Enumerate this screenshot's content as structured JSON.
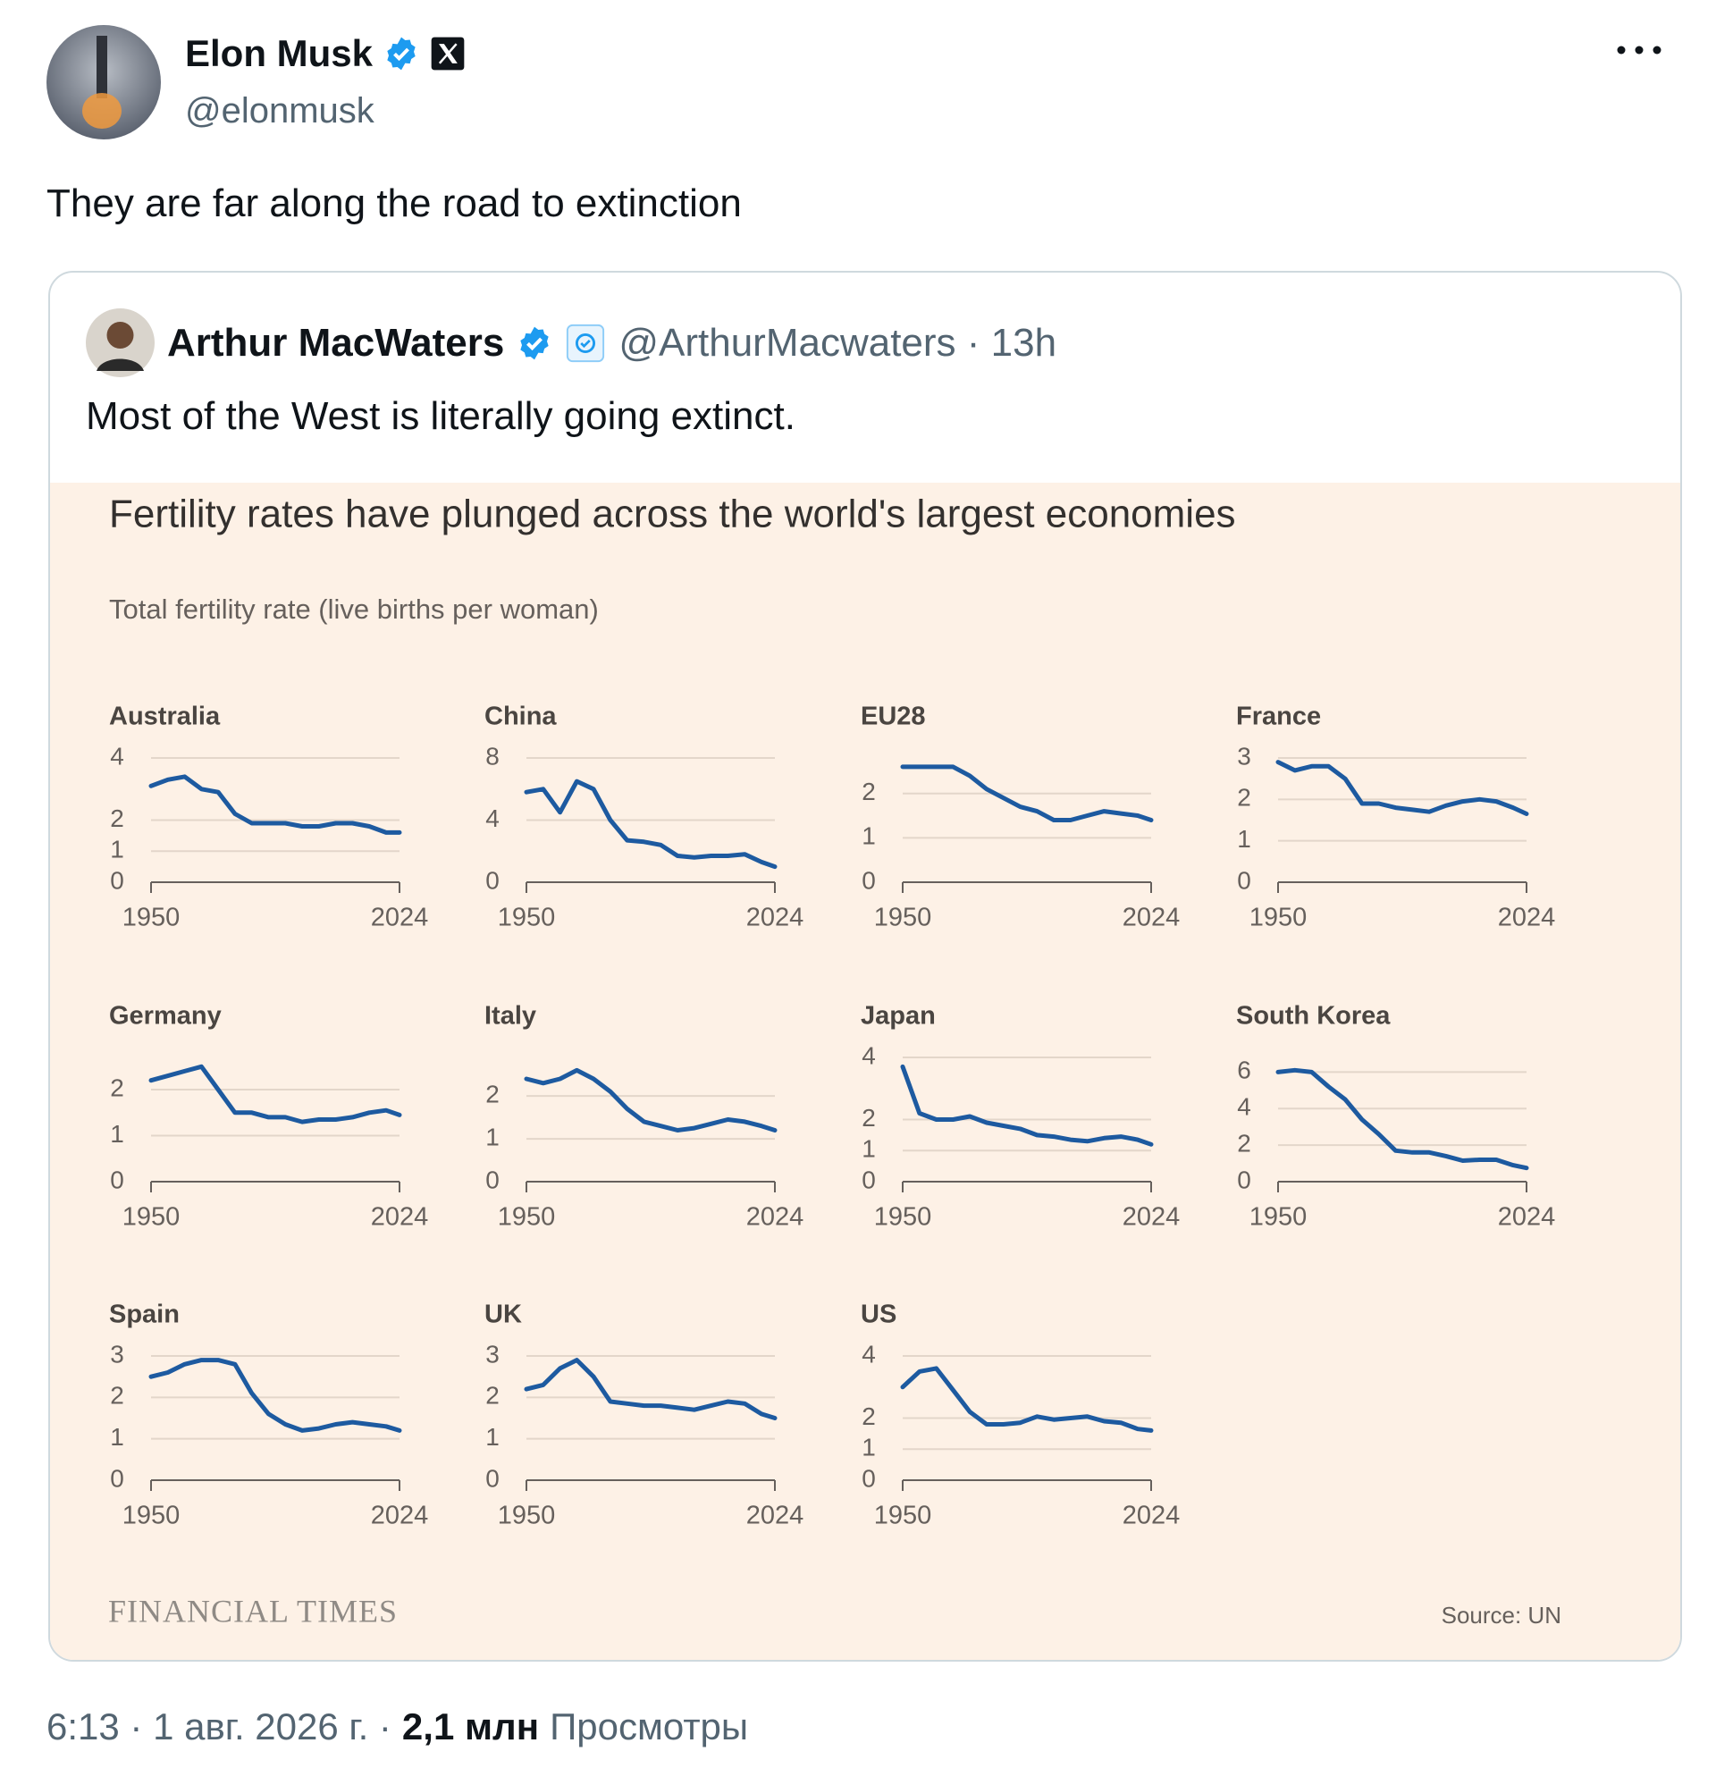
{
  "author": {
    "name": "Elon Musk",
    "handle": "@elonmusk"
  },
  "text": "They are far along the road to extinction",
  "quote": {
    "name": "Arthur MacWaters",
    "meta": "@ArthurMacwaters · 13h",
    "text": "Most of the West is literally going extinct."
  },
  "figure": {
    "title": "Fertility rates have plunged across the world's largest economies",
    "subtitle": "Total fertility rate (live births per woman)",
    "brand": "FINANCIAL TIMES",
    "source": "Source: UN"
  },
  "footer": {
    "timestamp": "6:13 · 1 авг. 2026 г. ·",
    "views": "2,1 млн",
    "views_label": "Просмотры"
  },
  "chart_data": [
    {
      "type": "line",
      "title": "Australia",
      "color": "#1d5aa0",
      "x": [
        1950,
        1955,
        1960,
        1965,
        1970,
        1975,
        1980,
        1985,
        1990,
        1995,
        2000,
        2005,
        2010,
        2015,
        2020,
        2024
      ],
      "values": [
        3.1,
        3.3,
        3.4,
        3.0,
        2.9,
        2.2,
        1.9,
        1.9,
        1.9,
        1.8,
        1.8,
        1.9,
        1.9,
        1.8,
        1.6,
        1.6
      ],
      "xlim": [
        1950,
        2024
      ],
      "xticks": [
        1950,
        2024
      ],
      "ylim": [
        0,
        4
      ],
      "yticks": [
        0,
        1,
        2,
        4
      ]
    },
    {
      "type": "line",
      "title": "China",
      "color": "#1d5aa0",
      "x": [
        1950,
        1955,
        1960,
        1965,
        1970,
        1975,
        1980,
        1985,
        1990,
        1995,
        2000,
        2005,
        2010,
        2015,
        2020,
        2024
      ],
      "values": [
        5.8,
        6.0,
        4.5,
        6.5,
        6.0,
        4.0,
        2.7,
        2.6,
        2.4,
        1.7,
        1.6,
        1.7,
        1.7,
        1.8,
        1.3,
        1.0
      ],
      "xlim": [
        1950,
        2024
      ],
      "xticks": [
        1950,
        2024
      ],
      "ylim": [
        0,
        8
      ],
      "yticks": [
        0,
        4,
        8
      ]
    },
    {
      "type": "line",
      "title": "EU28",
      "color": "#1d5aa0",
      "x": [
        1950,
        1955,
        1960,
        1965,
        1970,
        1975,
        1980,
        1985,
        1990,
        1995,
        2000,
        2005,
        2010,
        2015,
        2020,
        2024
      ],
      "values": [
        2.6,
        2.6,
        2.6,
        2.6,
        2.4,
        2.1,
        1.9,
        1.7,
        1.6,
        1.4,
        1.4,
        1.5,
        1.6,
        1.55,
        1.5,
        1.4
      ],
      "xlim": [
        1950,
        2024
      ],
      "xticks": [
        1950,
        2024
      ],
      "ylim": [
        0,
        2.8
      ],
      "yticks": [
        0,
        1,
        2
      ]
    },
    {
      "type": "line",
      "title": "France",
      "color": "#1d5aa0",
      "x": [
        1950,
        1955,
        1960,
        1965,
        1970,
        1975,
        1980,
        1985,
        1990,
        1995,
        2000,
        2005,
        2010,
        2015,
        2020,
        2024
      ],
      "values": [
        2.9,
        2.7,
        2.8,
        2.8,
        2.5,
        1.9,
        1.9,
        1.8,
        1.75,
        1.7,
        1.85,
        1.95,
        2.0,
        1.95,
        1.8,
        1.65
      ],
      "xlim": [
        1950,
        2024
      ],
      "xticks": [
        1950,
        2024
      ],
      "ylim": [
        0,
        3
      ],
      "yticks": [
        0,
        1,
        2,
        3
      ]
    },
    {
      "type": "line",
      "title": "Germany",
      "color": "#1d5aa0",
      "x": [
        1950,
        1955,
        1960,
        1965,
        1970,
        1975,
        1980,
        1985,
        1990,
        1995,
        2000,
        2005,
        2010,
        2015,
        2020,
        2024
      ],
      "values": [
        2.2,
        2.3,
        2.4,
        2.5,
        2.0,
        1.5,
        1.5,
        1.4,
        1.4,
        1.3,
        1.35,
        1.35,
        1.4,
        1.5,
        1.55,
        1.45
      ],
      "xlim": [
        1950,
        2024
      ],
      "xticks": [
        1950,
        2024
      ],
      "ylim": [
        0,
        2.7
      ],
      "yticks": [
        0,
        1,
        2
      ]
    },
    {
      "type": "line",
      "title": "Italy",
      "color": "#1d5aa0",
      "x": [
        1950,
        1955,
        1960,
        1965,
        1970,
        1975,
        1980,
        1985,
        1990,
        1995,
        2000,
        2005,
        2010,
        2015,
        2020,
        2024
      ],
      "values": [
        2.4,
        2.3,
        2.4,
        2.6,
        2.4,
        2.1,
        1.7,
        1.4,
        1.3,
        1.2,
        1.25,
        1.35,
        1.45,
        1.4,
        1.3,
        1.2
      ],
      "xlim": [
        1950,
        2024
      ],
      "xticks": [
        1950,
        2024
      ],
      "ylim": [
        0,
        2.9
      ],
      "yticks": [
        0,
        1,
        2
      ]
    },
    {
      "type": "line",
      "title": "Japan",
      "color": "#1d5aa0",
      "x": [
        1950,
        1955,
        1960,
        1965,
        1970,
        1975,
        1980,
        1985,
        1990,
        1995,
        2000,
        2005,
        2010,
        2015,
        2020,
        2024
      ],
      "values": [
        3.7,
        2.2,
        2.0,
        2.0,
        2.1,
        1.9,
        1.8,
        1.7,
        1.5,
        1.45,
        1.35,
        1.3,
        1.4,
        1.45,
        1.35,
        1.2
      ],
      "xlim": [
        1950,
        2024
      ],
      "xticks": [
        1950,
        2024
      ],
      "ylim": [
        0,
        4
      ],
      "yticks": [
        0,
        1,
        2,
        4
      ]
    },
    {
      "type": "line",
      "title": "South Korea",
      "color": "#1d5aa0",
      "x": [
        1950,
        1955,
        1960,
        1965,
        1970,
        1975,
        1980,
        1985,
        1990,
        1995,
        2000,
        2005,
        2010,
        2015,
        2020,
        2024
      ],
      "values": [
        6.0,
        6.1,
        6.0,
        5.2,
        4.5,
        3.4,
        2.6,
        1.7,
        1.6,
        1.6,
        1.4,
        1.15,
        1.2,
        1.2,
        0.9,
        0.75
      ],
      "xlim": [
        1950,
        2024
      ],
      "xticks": [
        1950,
        2024
      ],
      "ylim": [
        0,
        6.8
      ],
      "yticks": [
        0,
        2,
        4,
        6
      ]
    },
    {
      "type": "line",
      "title": "Spain",
      "color": "#1d5aa0",
      "x": [
        1950,
        1955,
        1960,
        1965,
        1970,
        1975,
        1980,
        1985,
        1990,
        1995,
        2000,
        2005,
        2010,
        2015,
        2020,
        2024
      ],
      "values": [
        2.5,
        2.6,
        2.8,
        2.9,
        2.9,
        2.8,
        2.1,
        1.6,
        1.35,
        1.2,
        1.25,
        1.35,
        1.4,
        1.35,
        1.3,
        1.2
      ],
      "xlim": [
        1950,
        2024
      ],
      "xticks": [
        1950,
        2024
      ],
      "ylim": [
        0,
        3
      ],
      "yticks": [
        0,
        1,
        2,
        3
      ]
    },
    {
      "type": "line",
      "title": "UK",
      "color": "#1d5aa0",
      "x": [
        1950,
        1955,
        1960,
        1965,
        1970,
        1975,
        1980,
        1985,
        1990,
        1995,
        2000,
        2005,
        2010,
        2015,
        2020,
        2024
      ],
      "values": [
        2.2,
        2.3,
        2.7,
        2.9,
        2.5,
        1.9,
        1.85,
        1.8,
        1.8,
        1.75,
        1.7,
        1.8,
        1.9,
        1.85,
        1.6,
        1.5
      ],
      "xlim": [
        1950,
        2024
      ],
      "xticks": [
        1950,
        2024
      ],
      "ylim": [
        0,
        3
      ],
      "yticks": [
        0,
        1,
        2,
        3
      ]
    },
    {
      "type": "line",
      "title": "US",
      "color": "#1d5aa0",
      "x": [
        1950,
        1955,
        1960,
        1965,
        1970,
        1975,
        1980,
        1985,
        1990,
        1995,
        2000,
        2005,
        2010,
        2015,
        2020,
        2024
      ],
      "values": [
        3.0,
        3.5,
        3.6,
        2.9,
        2.2,
        1.8,
        1.8,
        1.85,
        2.05,
        1.95,
        2.0,
        2.05,
        1.9,
        1.85,
        1.65,
        1.6
      ],
      "xlim": [
        1950,
        2024
      ],
      "xticks": [
        1950,
        2024
      ],
      "ylim": [
        0,
        4
      ],
      "yticks": [
        0,
        1,
        2,
        4
      ]
    }
  ]
}
